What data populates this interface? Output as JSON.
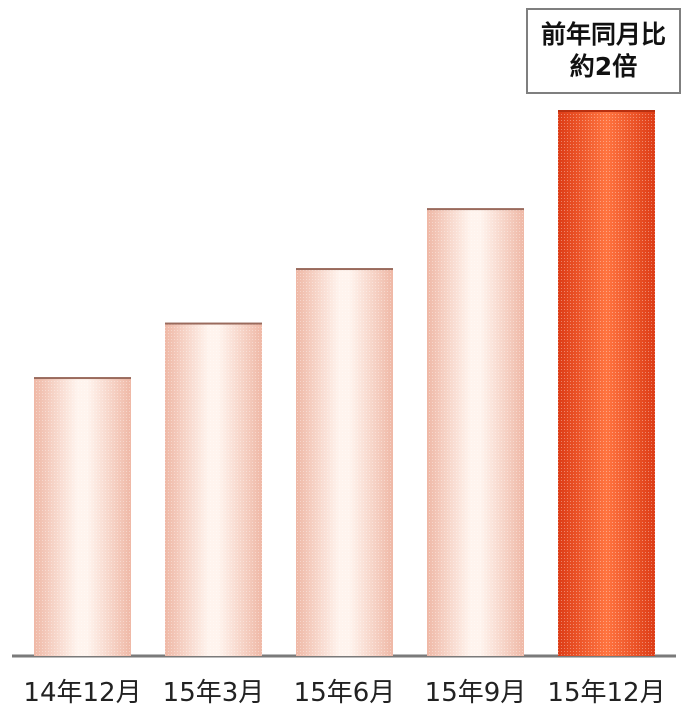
{
  "chart_data": {
    "type": "bar",
    "categories": [
      "14年12月",
      "15年3月",
      "15年6月",
      "15年9月",
      "15年12月"
    ],
    "values": [
      51,
      61,
      71,
      82,
      100
    ],
    "ylim": [
      0,
      100
    ],
    "grid": false,
    "highlight_index": 4,
    "annotation": {
      "line1": "前年同月比",
      "line2": "約2倍"
    }
  },
  "colors": {
    "bar_light_edge": "#f2c2b2",
    "bar_light_center": "#fff3ec",
    "bar_highlight_edge": "#e0401a",
    "bar_highlight_center": "#ff7a45",
    "baseline": "#7a7a7a"
  }
}
